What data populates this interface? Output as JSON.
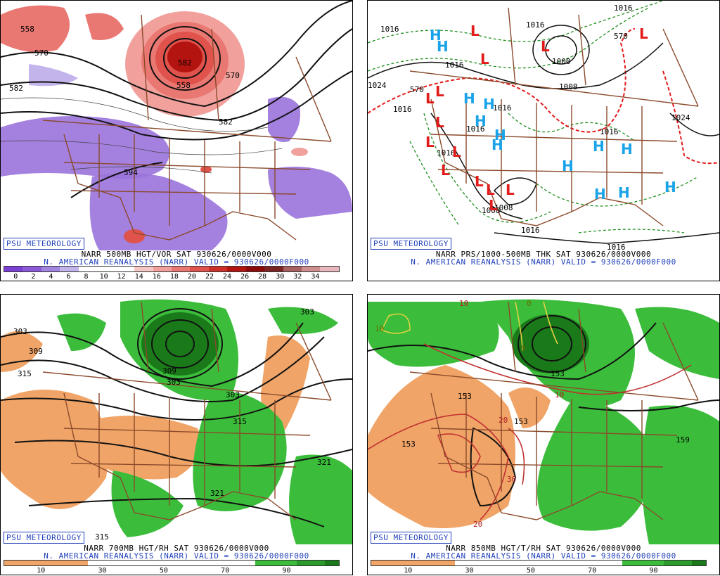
{
  "panels": [
    {
      "credit": "PSU METEOROLOGY",
      "line1": "NARR 500MB HGT/VOR SAT 930626/0000V000",
      "line2": "N. AMERICAN REANALYSIS (NARR) VALID = 930626/0000F000",
      "colorbar": {
        "colors": [
          "#7b3fd6",
          "#8c5ad9",
          "#a285e0",
          "#c2b4ea",
          "#ffffff",
          "#ffffff",
          "#ffffff",
          "#f5c7c4",
          "#f19f9c",
          "#ea7872",
          "#e0524c",
          "#cc3029",
          "#b31410",
          "#8e0a08",
          "#7a2323",
          "#a86060",
          "#cc8e8e",
          "#e8b8bd"
        ],
        "ticks": [
          "0",
          "2",
          "4",
          "6",
          "8",
          "10",
          "12",
          "14",
          "16",
          "18",
          "20",
          "22",
          "24",
          "26",
          "28",
          "30",
          "32",
          "34"
        ]
      },
      "contour_labels": [
        "558",
        "570",
        "582",
        "582",
        "594",
        "570",
        "558",
        "582"
      ]
    },
    {
      "credit": "PSU METEOROLOGY",
      "line1": "NARR PRS/1000-500MB THK SAT 930626/0000V000",
      "line2": "N. AMERICAN REANALYSIS (NARR) VALID = 930626/0000F000",
      "contour_labels": [
        "1016",
        "1016",
        "1016",
        "1016",
        "1000",
        "1016",
        "1024",
        "1008",
        "1016",
        "1024",
        "1016",
        "1008",
        "1016",
        "1016",
        "570",
        "570",
        "1016",
        "1016",
        "1008"
      ],
      "highs": [
        "H",
        "H",
        "H",
        "H",
        "H",
        "H",
        "H",
        "H",
        "H",
        "H",
        "H",
        "H",
        "H"
      ],
      "lows": [
        "L",
        "L",
        "L",
        "L",
        "L",
        "L",
        "L",
        "L",
        "L",
        "L",
        "L",
        "L",
        "L",
        "L"
      ]
    },
    {
      "credit": "PSU METEOROLOGY",
      "line1": "NARR 700MB HGT/RH SAT 930626/0000V000",
      "line2": "N. AMERICAN REANALYSIS (NARR) VALID = 930626/0000F000",
      "colorbar": {
        "colors": [
          "#f0a467",
          "#f0a467",
          "#f0a467",
          "#f0a467",
          "#f0a467",
          "#f0a467",
          "#ffffff",
          "#ffffff",
          "#ffffff",
          "#ffffff",
          "#ffffff",
          "#ffffff",
          "#ffffff",
          "#ffffff",
          "#ffffff",
          "#ffffff",
          "#ffffff",
          "#ffffff",
          "#3bbd3b",
          "#3bbd3b",
          "#3bbd3b",
          "#2a9a2a",
          "#2a9a2a",
          "#1a7a1a"
        ],
        "ticks": [
          "10",
          "30",
          "50",
          "70",
          "90"
        ]
      },
      "contour_labels": [
        "303",
        "309",
        "315",
        "303",
        "303",
        "309",
        "315",
        "303",
        "321",
        "321",
        "315"
      ]
    },
    {
      "credit": "PSU METEOROLOGY",
      "line1": "NARR 850MB HGT/T/RH SAT 930626/0000V000",
      "line2": "N. AMERICAN REANALYSIS (NARR) VALID = 930626/0000F000",
      "colorbar": {
        "colors": [
          "#f0a467",
          "#f0a467",
          "#f0a467",
          "#f0a467",
          "#f0a467",
          "#f0a467",
          "#ffffff",
          "#ffffff",
          "#ffffff",
          "#ffffff",
          "#ffffff",
          "#ffffff",
          "#ffffff",
          "#ffffff",
          "#ffffff",
          "#ffffff",
          "#ffffff",
          "#ffffff",
          "#3bbd3b",
          "#3bbd3b",
          "#3bbd3b",
          "#2a9a2a",
          "#2a9a2a",
          "#1a7a1a"
        ],
        "ticks": [
          "10",
          "30",
          "50",
          "70",
          "90"
        ]
      },
      "contour_labels": [
        "153",
        "153",
        "153",
        "159",
        "153",
        "10",
        "20",
        "30",
        "20",
        "10",
        "0",
        "10",
        "0"
      ]
    }
  ],
  "colors": {
    "border_brown": "#8b4a2b",
    "low_red": "#e21b1b",
    "high_cyan": "#1aa3e8",
    "thickness_green": "#1f8f1f",
    "thickness_red": "#e21b1b",
    "credit_blue": "#1f3fb8"
  }
}
